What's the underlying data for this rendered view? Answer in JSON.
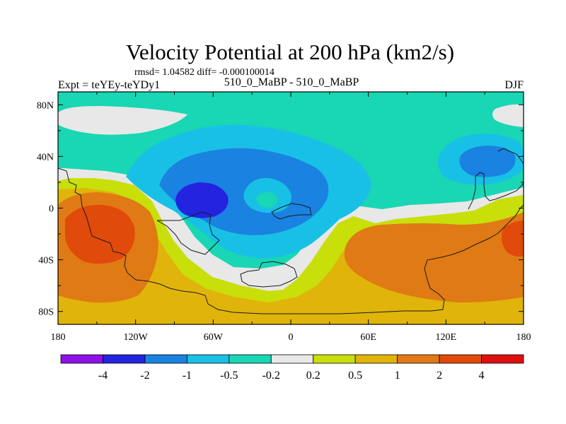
{
  "chart_data": {
    "type": "heatmap",
    "title": "Velocity Potential at 200 hPa (km2/s)",
    "stats_line": "rmsd= 1.04582 diff= -0.000100014",
    "left_label": "Expt = teYEy-teYDy1",
    "center_label": "510_0_MaBP - 510_0_MaBP",
    "right_label": "DJF",
    "x_tick_labels": [
      "180",
      "120W",
      "60W",
      "0",
      "60E",
      "120E",
      "180"
    ],
    "y_tick_labels": [
      "80N",
      "40N",
      "0",
      "40S",
      "80S"
    ],
    "x_ticks_deg": [
      -180,
      -120,
      -60,
      0,
      60,
      120,
      180
    ],
    "y_ticks_deg": [
      80,
      40,
      0,
      -40,
      -80
    ],
    "xlim": [
      -180,
      180
    ],
    "ylim": [
      -90,
      90
    ],
    "colorbar_levels": [
      "-4",
      "-2",
      "-1",
      "-0.5",
      "-0.2",
      "0.2",
      "0.5",
      "1",
      "2",
      "4"
    ],
    "colorbar_colors": [
      "#8b12e8",
      "#2323e0",
      "#1a82e0",
      "#19c0e6",
      "#19d6b4",
      "#e8e8e8",
      "#c8df0a",
      "#e0b40a",
      "#e07a14",
      "#e04a0a",
      "#e00f0f"
    ],
    "regions": [
      {
        "name": "band-neg-0.2-0.2",
        "color": "#e8e8e8"
      },
      {
        "name": "band-neg-0.5",
        "color": "#19d6b4"
      },
      {
        "name": "band-neg-1",
        "color": "#19c0e6"
      },
      {
        "name": "band-neg-2",
        "color": "#1a82e0"
      },
      {
        "name": "band-neg-4",
        "color": "#2323e0"
      },
      {
        "name": "band-pos-0.5",
        "color": "#c8df0a"
      },
      {
        "name": "band-pos-1",
        "color": "#e0b40a"
      },
      {
        "name": "band-pos-2",
        "color": "#e07a14"
      },
      {
        "name": "band-pos-4",
        "color": "#e04a0a"
      }
    ]
  }
}
